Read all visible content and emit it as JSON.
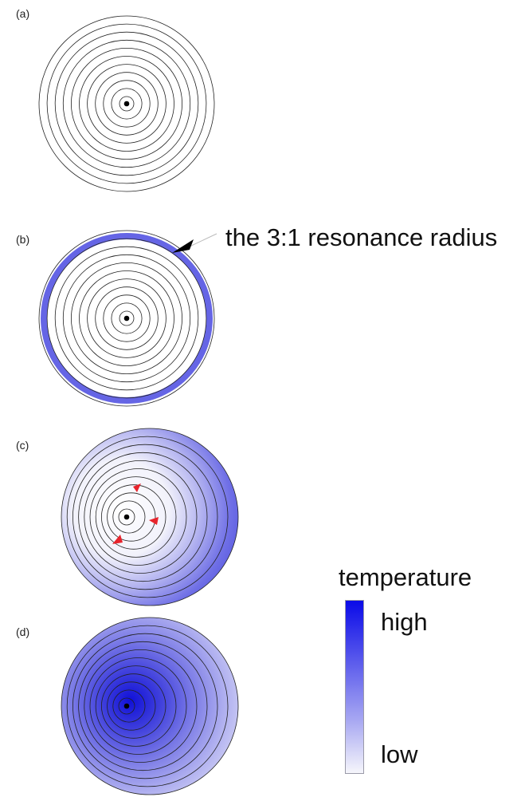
{
  "panels": {
    "a": {
      "label": "(a)"
    },
    "b": {
      "label": "(b)",
      "annotation": "the 3:1 resonance radius"
    },
    "c": {
      "label": "(c)"
    },
    "d": {
      "label": "(d)"
    }
  },
  "legend": {
    "title": "temperature",
    "high_label": "high",
    "low_label": "low"
  },
  "colors": {
    "ring_stroke": "#222222",
    "resonance_band": "#4a4ae0",
    "temperature_high": "#0a0ae8",
    "temperature_low": "#f6f6fb",
    "arrow_red": "#e8242c",
    "center_dot": "#000000"
  },
  "ring_count": 11
}
